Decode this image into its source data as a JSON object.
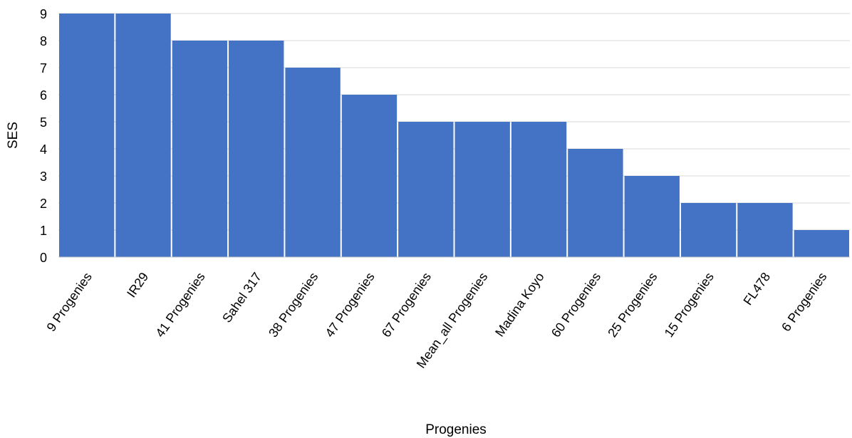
{
  "chart_data": {
    "type": "bar",
    "categories": [
      "9 Progenies",
      "IR29",
      "41 Progenies",
      "Sahel 317",
      "38 Progenies",
      "47 Progenies",
      "67 Progenies",
      "Mean_all Progenies",
      "Madina Koyo",
      "60 Progenies",
      "25 Progenies",
      "15 Progenies",
      "FL478",
      "6 Progenies"
    ],
    "values": [
      9,
      9,
      8,
      8,
      7,
      6,
      5,
      5,
      5,
      4,
      3,
      2,
      2,
      1
    ],
    "xlabel": "Progenies",
    "ylabel": "SES",
    "ylim": [
      0,
      9
    ],
    "yticks": [
      0,
      1,
      2,
      3,
      4,
      5,
      6,
      7,
      8,
      9
    ],
    "grid": true,
    "legend": "none",
    "bar_color": "#4472c4"
  }
}
